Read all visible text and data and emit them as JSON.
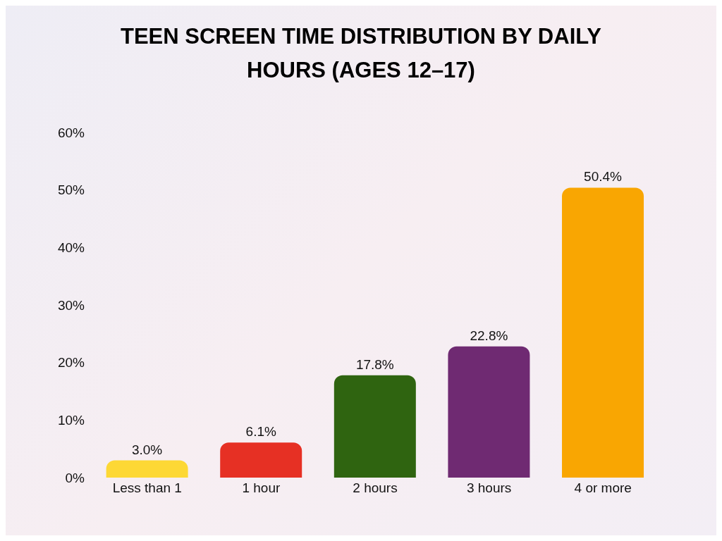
{
  "chart_data": {
    "type": "bar",
    "title": "TEEN SCREEN TIME DISTRIBUTION BY DAILY HOURS (AGES 12–17)",
    "categories": [
      "Less than 1",
      "1 hour",
      "2 hours",
      "3 hours",
      "4 or more"
    ],
    "values": [
      3.0,
      6.1,
      17.8,
      22.8,
      50.4
    ],
    "value_labels": [
      "3.0%",
      "6.1%",
      "17.8%",
      "22.8%",
      "50.4%"
    ],
    "colors": [
      "#fdd835",
      "#e63024",
      "#2f6410",
      "#6f2a72",
      "#f9a602"
    ],
    "ylim": [
      0,
      60
    ],
    "yticks": [
      {
        "value": 0,
        "label": "0%"
      },
      {
        "value": 10,
        "label": "10%"
      },
      {
        "value": 20,
        "label": "20%"
      },
      {
        "value": 30,
        "label": "30%"
      },
      {
        "value": 40,
        "label": "40%"
      },
      {
        "value": 50,
        "label": "50%"
      },
      {
        "value": 60,
        "label": "60%"
      }
    ],
    "grid": false,
    "legend": false
  }
}
